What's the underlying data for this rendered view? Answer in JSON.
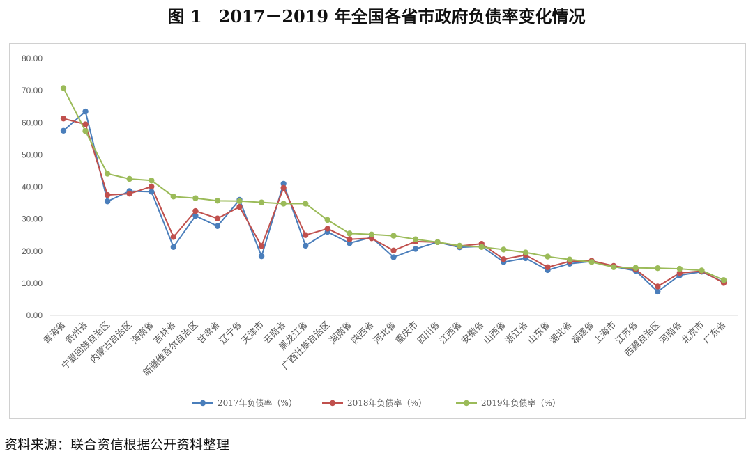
{
  "title": "图 1　2017－2019 年全国各省市政府负债率变化情况",
  "source": "资料来源：联合资信根据公开资料整理",
  "chart_data": {
    "type": "line",
    "title": "",
    "xlabel": "",
    "ylabel": "",
    "ylim": [
      0,
      80
    ],
    "yticks": [
      "0.00",
      "10.00",
      "20.00",
      "30.00",
      "40.00",
      "50.00",
      "60.00",
      "70.00",
      "80.00"
    ],
    "grid": false,
    "legend": "bottom",
    "categories": [
      "青海省",
      "贵州省",
      "宁夏回族自治区",
      "内蒙古自治区",
      "海南省",
      "吉林省",
      "新疆维吾尔自治区",
      "甘肃省",
      "辽宁省",
      "天津市",
      "云南省",
      "黑龙江省",
      "广西壮族自治区",
      "湖南省",
      "陕西省",
      "河北省",
      "重庆市",
      "四川省",
      "江西省",
      "安徽省",
      "山西省",
      "浙江省",
      "山东省",
      "湖北省",
      "福建省",
      "上海市",
      "江苏省",
      "西藏自治区",
      "河南省",
      "北京市",
      "广东省"
    ],
    "series": [
      {
        "name": "2017年负债率（%）",
        "color": "#4a7ebb",
        "values": [
          57.5,
          63.5,
          35.5,
          38.7,
          38.5,
          21.3,
          31.0,
          27.8,
          36.0,
          18.4,
          41.0,
          21.7,
          26.0,
          22.5,
          24.3,
          18.1,
          20.7,
          22.8,
          21.2,
          21.5,
          16.6,
          17.8,
          14.1,
          16.1,
          16.8,
          15.2,
          13.9,
          7.4,
          12.5,
          13.6,
          10.3
        ]
      },
      {
        "name": "2018年负债率（%）",
        "color": "#c0504d",
        "values": [
          61.3,
          59.5,
          37.5,
          37.9,
          40.1,
          24.4,
          32.5,
          30.2,
          33.8,
          21.6,
          39.7,
          25.0,
          27.0,
          23.7,
          24.0,
          20.2,
          23.0,
          22.8,
          21.6,
          22.3,
          17.5,
          18.8,
          15.0,
          16.8,
          17.0,
          15.4,
          14.3,
          9.0,
          13.2,
          13.8,
          10.1
        ]
      },
      {
        "name": "2019年负债率（%）",
        "color": "#9bbb59",
        "values": [
          70.8,
          57.4,
          44.1,
          42.5,
          42.0,
          37.0,
          36.5,
          35.7,
          35.6,
          35.2,
          34.8,
          34.8,
          29.7,
          25.5,
          25.2,
          24.8,
          23.7,
          22.8,
          21.7,
          21.3,
          20.5,
          19.6,
          18.3,
          17.4,
          16.6,
          15.0,
          14.8,
          14.7,
          14.5,
          14.0,
          11.0
        ]
      }
    ]
  }
}
